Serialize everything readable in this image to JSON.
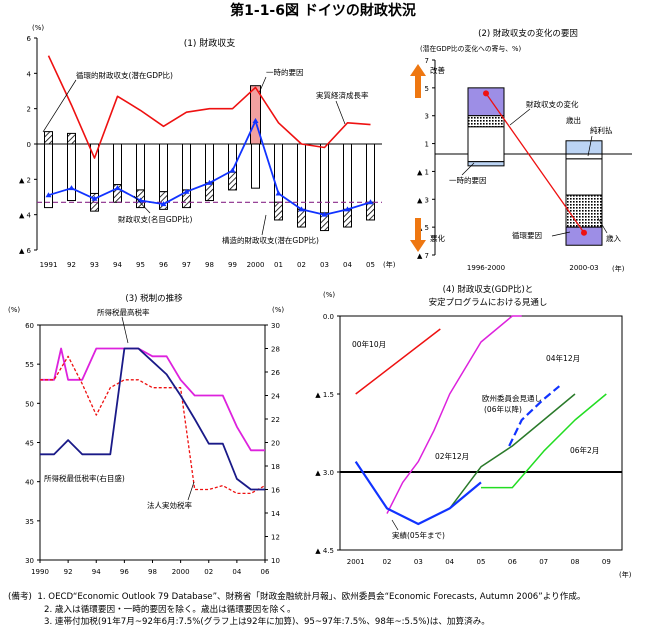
{
  "title": "第1-1-6図 ドイツの財政状況",
  "chart_data": [
    {
      "id": "p1",
      "type": "bar",
      "title": "(1) 財政収支",
      "yunit": "(%)",
      "xunit": "(年)",
      "ylim": [
        -6,
        6
      ],
      "yticks": [
        6,
        4,
        2,
        0,
        -2,
        -4,
        -6
      ],
      "ytick_labels": [
        "6",
        "4",
        "2",
        "0",
        "▲ 2",
        "▲ 4",
        "▲ 6"
      ],
      "categories": [
        "1991",
        "92",
        "93",
        "94",
        "95",
        "96",
        "97",
        "98",
        "99",
        "2000",
        "01",
        "02",
        "03",
        "04",
        "05"
      ],
      "series": [
        {
          "name": "財政収支(名目GDP比)",
          "values": [
            -2.9,
            -2.5,
            -3.1,
            -2.5,
            -3.2,
            -3.4,
            -2.7,
            -2.2,
            -1.5,
            1.3,
            -2.8,
            -3.7,
            -4.0,
            -3.7,
            -3.3
          ]
        },
        {
          "name": "実質経済成長率",
          "values": [
            5.0,
            2.2,
            -0.8,
            2.7,
            1.9,
            1.0,
            1.8,
            2.0,
            2.0,
            3.2,
            1.2,
            0.0,
            -0.2,
            1.2,
            1.1
          ]
        },
        {
          "name": "構造的財政収支(潜在GDP比)",
          "values": [
            -3.3,
            -3.3,
            -3.3,
            -3.3,
            -3.3,
            -3.3,
            -3.3,
            -3.3,
            -3.3,
            -3.3,
            -3.3,
            -3.3,
            -3.3,
            -3.3,
            -3.3
          ]
        }
      ],
      "bars": {
        "cyclical": [
          0.7,
          0.6,
          -2.0,
          -1.8,
          -2.4,
          -2.6,
          -1.9,
          -1.7,
          -1.2,
          0.7,
          -1.6,
          -2.7,
          -3.1,
          -2.8,
          -2.3
        ],
        "total": [
          -3.6,
          -3.2,
          -2.8,
          -2.3,
          -2.6,
          -2.7,
          -2.6,
          -2.2,
          -1.6,
          -2.5,
          -3.3,
          -3.7,
          -3.9,
          -3.7,
          -3.3
        ],
        "onetime_2000": 3.3
      },
      "annotations": [
        "循環的財政収支(潜在GDP比)",
        "一時的要因",
        "実質経済成長率",
        "財政収支(名目GDP比)",
        "構造的財政収支(潜在GDP比)"
      ]
    },
    {
      "id": "p2",
      "type": "bar",
      "title": "(2) 財政収支の変化の要因",
      "subtitle": "(潜在GDP比の変化への寄与、%)",
      "xunit": "(年)",
      "categories": [
        "1996-2000",
        "2000-03"
      ],
      "ylim": [
        -7,
        7
      ],
      "yticks": [
        7,
        5,
        3,
        1,
        -1,
        -3,
        -5,
        -7
      ],
      "ytick_labels": [
        "7",
        "5",
        "3",
        "1",
        "▲ 1",
        "▲ 3",
        "▲ 5",
        "▲ 7"
      ],
      "line_values": [
        4.6,
        -5.4
      ],
      "annotations": [
        "改善",
        "悪化",
        "財政収支の変化",
        "歳出",
        "純利払",
        "一時的要因",
        "循環要因",
        "歳入"
      ]
    },
    {
      "id": "p3",
      "type": "line",
      "title": "(3) 税制の推移",
      "yunit_left": "(%)",
      "yunit_right": "(%)",
      "ylim_left": [
        30,
        60
      ],
      "ylim_right": [
        10,
        30
      ],
      "yticks_left": [
        60,
        55,
        50,
        45,
        40,
        35,
        30
      ],
      "yticks_right": [
        30,
        28,
        26,
        24,
        22,
        20,
        18,
        16,
        14,
        12,
        10
      ],
      "x": [
        1990,
        2006
      ],
      "xtick_labels": [
        "1990",
        "92",
        "94",
        "96",
        "98",
        "2000",
        "02",
        "04",
        "06"
      ],
      "series": [
        {
          "name": "所得税最高税率",
          "x": [
            1990,
            1991,
            1991.5,
            1992,
            1993,
            1994,
            1995,
            1996,
            1997,
            1998,
            1999,
            2000,
            2001,
            2002,
            2003,
            2004,
            2005,
            2006
          ],
          "values": [
            53,
            53,
            57,
            53,
            53,
            57,
            57,
            57,
            57,
            56,
            56,
            53,
            51,
            51,
            51,
            47,
            44,
            44
          ]
        },
        {
          "name": "所得税最低税率(右目盛)",
          "x": [
            1990,
            1991,
            1992,
            1993,
            1994,
            1995,
            1996,
            1997,
            1998,
            1999,
            2000,
            2001,
            2002,
            2003,
            2004,
            2005,
            2006
          ],
          "values": [
            19,
            19,
            20.2,
            19,
            19,
            19,
            28,
            28,
            26.9,
            25.8,
            24,
            22,
            19.9,
            19.9,
            16.9,
            16,
            16
          ]
        },
        {
          "name": "法人実効税率",
          "x": [
            1990,
            1991,
            1992,
            1993,
            1994,
            1995,
            1996,
            1997,
            1998,
            1999,
            2000,
            2001,
            2002,
            2003,
            2004,
            2005,
            2006
          ],
          "values": [
            53,
            53,
            56,
            52.5,
            48.5,
            52,
            53,
            53,
            52,
            52,
            52,
            39,
            39,
            39.5,
            38.5,
            38.5,
            39.5
          ]
        }
      ]
    },
    {
      "id": "p4",
      "type": "line",
      "title": "(4) 財政収支(GDP比)と",
      "subtitle": "安定プログラムにおける見通し",
      "yunit": "(%)",
      "xunit": "(年)",
      "ylim": [
        0.0,
        -4.5
      ],
      "yticks": [
        0.0,
        -1.5,
        -3.0,
        -4.5
      ],
      "ytick_labels": [
        "0.0",
        "▲ 1.5",
        "▲ 3.0",
        "▲ 4.5"
      ],
      "xtick_labels": [
        "2001",
        "02",
        "03",
        "04",
        "05",
        "06",
        "07",
        "08",
        "09"
      ],
      "series": [
        {
          "name": "00年10月",
          "x": [
            2001,
            2003.7
          ],
          "values": [
            -1.5,
            -0.25
          ]
        },
        {
          "name": "02年12月",
          "x": [
            2002,
            2002.5,
            2003,
            2003.5,
            2004,
            2005,
            2006,
            2006.3
          ],
          "values": [
            -3.8,
            -3.2,
            -2.8,
            -2.2,
            -1.5,
            -0.5,
            0.0,
            0.0
          ]
        },
        {
          "name": "欧州委員会見通し(06年以降)",
          "x": [
            2005.9,
            2006.3,
            2007,
            2007.5
          ],
          "values": [
            -2.5,
            -2.0,
            -1.6,
            -1.35
          ]
        },
        {
          "name": "04年12月",
          "x": [
            2004,
            2005,
            2006,
            2007,
            2008
          ],
          "values": [
            -3.7,
            -2.9,
            -2.5,
            -2.0,
            -1.5
          ]
        },
        {
          "name": "06年2月",
          "x": [
            2005,
            2006,
            2007,
            2008,
            2009
          ],
          "values": [
            -3.3,
            -3.3,
            -2.6,
            -2.0,
            -1.5
          ]
        },
        {
          "name": "実績(05年まで)",
          "x": [
            2001,
            2002,
            2003,
            2004,
            2005
          ],
          "values": [
            -2.8,
            -3.7,
            -4.0,
            -3.7,
            -3.2
          ]
        }
      ],
      "reference_line": -3.0
    }
  ],
  "labels": {
    "p1_cyclical": "循環的財政収支(潜在GDP比)",
    "p1_onetime": "一時的要因",
    "p1_growth": "実質経済成長率",
    "p1_balance": "財政収支(名目GDP比)",
    "p1_structural": "構造的財政収支(潜在GDP比)",
    "p2_improve": "改善",
    "p2_worsen": "悪化",
    "p2_change": "財政収支の変化の要因",
    "p2_expend": "歳出",
    "p2_interest": "純利払",
    "p2_onetime": "一時的要因",
    "p2_cyclical": "循環要因",
    "p2_revenue": "歳入",
    "p2_change_line": "財政収支の変化",
    "p3_top": "所得税最高税率",
    "p3_low": "所得税最低税率(右目盛)",
    "p3_corp": "法人実効税率",
    "p4_0010": "00年10月",
    "p4_0212": "02年12月",
    "p4_0412": "04年12月",
    "p4_ec": "欧州委員会見通し",
    "p4_ec2": "(06年以降)",
    "p4_0602": "06年2月",
    "p4_actual": "実績(05年まで)"
  },
  "notes": {
    "head": "(備考)",
    "n1": "1. OECD“Economic Outlook 79 Database”、財務省「財政金融統計月報」、欧州委員会“Economic Forecasts, Autumn 2006”より作成。",
    "n2": "2. 歳入は循環要因・一時的要因を除く。歳出は循環要因を除く。",
    "n3": "3. 連帯付加税(91年7月~92年6月:7.5%(グラフ上は92年に加算)、95~97年:7.5%、98年~:5.5%)は、加算済み。"
  },
  "colors": {
    "red": "#ee1111",
    "blue": "#1133ff",
    "navy": "#1a1a88",
    "magenta": "#dd22dd",
    "green": "#2a7a2a",
    "lightgreen": "#22dd22",
    "purple_dash": "#8a2a8a",
    "orange": "#ee7711",
    "bar_pink": "#f2a0a0",
    "bar_blue_light": "#bcd4f4",
    "p2_purple": "#9d8ee6"
  }
}
